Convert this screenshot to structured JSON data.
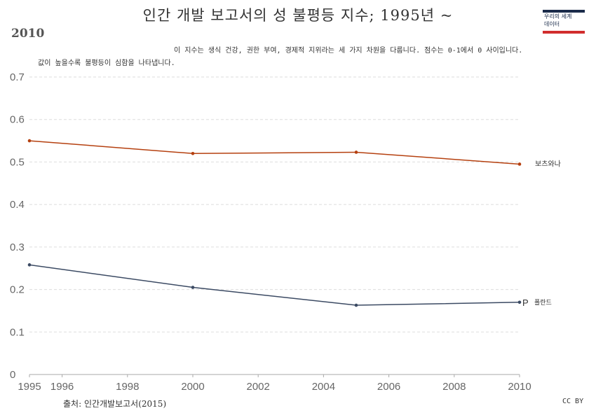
{
  "header": {
    "title_line1": "인간 개발 보고서의 성 불평등 지수; 1995년 ~",
    "title_line2": "2010",
    "subtitle_line1": "이 지수는 생식 건강, 권한 부여, 경제적 지위라는 세 가지 차원을 다룹니다. 점수는 0-1에서 0 사이입니다.",
    "subtitle_line2": "값이 높을수록 불평등이 심함을 나타냅니다."
  },
  "logo": {
    "line1": "우리의 세계",
    "line2": "데이터"
  },
  "footer": {
    "source": "출처: 인간개발보고서(2015)",
    "license": "CC BY"
  },
  "colors": {
    "botswana": "#b5400f",
    "poland": "#3b4a63",
    "grid": "#dddddd"
  },
  "chart_data": {
    "type": "line",
    "title": "인간 개발 보고서의 성 불평등 지수; 1995년 ~ 2010",
    "x": [
      1995,
      2000,
      2005,
      2010
    ],
    "series": [
      {
        "name": "보츠와나",
        "values": [
          0.55,
          0.52,
          0.523,
          0.495
        ]
      },
      {
        "name": "폴란드",
        "values": [
          0.258,
          0.205,
          0.163,
          0.17
        ]
      }
    ],
    "series_markers": {
      "폴란드": "P"
    },
    "xlim": [
      1995,
      2010
    ],
    "ylim": [
      0,
      0.7
    ],
    "x_ticks": [
      "1995",
      "1996",
      "1998",
      "2000",
      "2002",
      "2004",
      "2006",
      "2008",
      "2010"
    ],
    "y_ticks": [
      "0",
      "0.1",
      "0.2",
      "0.3",
      "0.4",
      "0.5",
      "0.6",
      "0.7"
    ],
    "grid": "horizontal dashed",
    "legend": "end-of-line labels"
  }
}
